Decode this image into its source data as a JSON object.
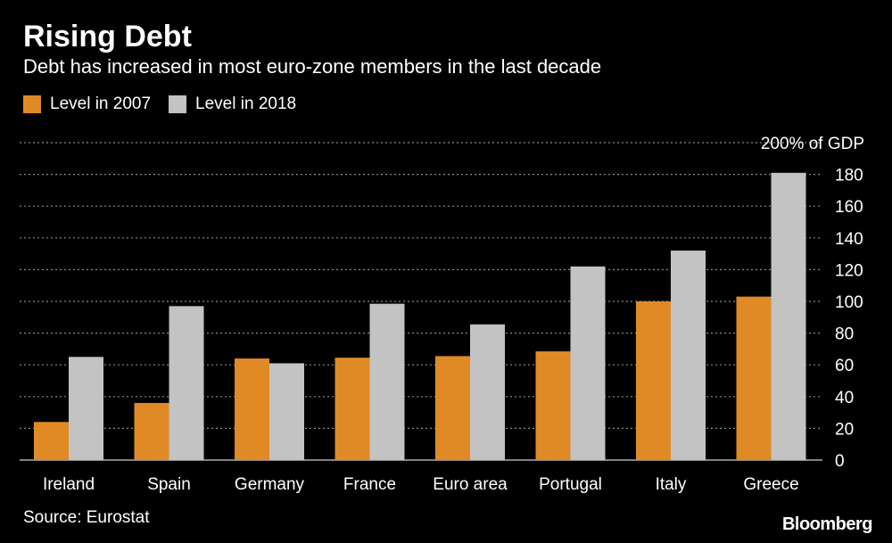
{
  "header": {
    "title": "Rising Debt",
    "subtitle": "Debt has increased in most euro-zone members in the last decade"
  },
  "footer": {
    "source": "Source: Eurostat",
    "brand": "Bloomberg"
  },
  "colors": {
    "series_2007": "#e08a26",
    "series_2018": "#c3c3c3",
    "grid": "#8a8a8a",
    "background": "#000000",
    "text": "#ffffff"
  },
  "chart_data": {
    "type": "bar",
    "title": "Rising Debt",
    "subtitle": "Debt has increased in most euro-zone members in the last decade",
    "categories": [
      "Ireland",
      "Spain",
      "Germany",
      "France",
      "Euro area",
      "Portugal",
      "Italy",
      "Greece"
    ],
    "series": [
      {
        "name": "Level in 2007",
        "values": [
          24,
          36,
          64,
          64.5,
          65.5,
          68.5,
          100,
          103
        ]
      },
      {
        "name": "Level in 2018",
        "values": [
          65,
          97,
          61,
          98.5,
          85.5,
          122,
          132,
          181
        ]
      }
    ],
    "ylim": [
      0,
      200
    ],
    "yticks": [
      0,
      20,
      40,
      60,
      80,
      100,
      120,
      140,
      160,
      180,
      200
    ],
    "ytick_labels": [
      "0",
      "20",
      "40",
      "60",
      "80",
      "100",
      "120",
      "140",
      "160",
      "180",
      "200% of GDP"
    ],
    "xlabel": "",
    "ylabel": "",
    "grid": true,
    "legend_position": "top-left"
  }
}
